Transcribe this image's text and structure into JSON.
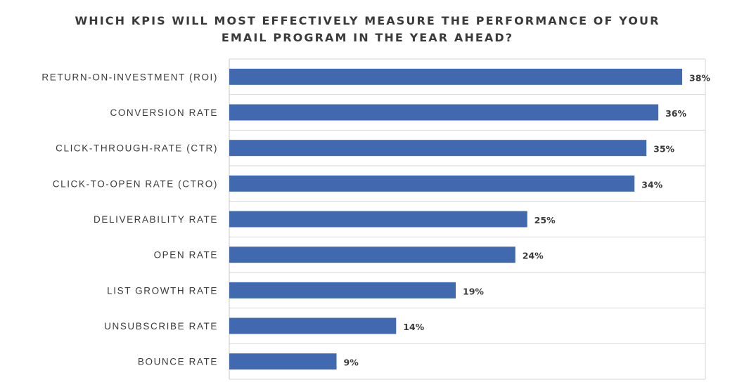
{
  "chart_data": {
    "type": "bar",
    "orientation": "horizontal",
    "title_lines": [
      "WHICH KPIS WILL MOST EFFECTIVELY MEASURE THE PERFORMANCE OF YOUR",
      "EMAIL PROGRAM IN THE YEAR AHEAD?"
    ],
    "categories": [
      "RETURN-ON-INVESTMENT (ROI)",
      "CONVERSION RATE",
      "CLICK-THROUGH-RATE (CTR)",
      "CLICK-TO-OPEN RATE (CTRO)",
      "DELIVERABILITY RATE",
      "OPEN RATE",
      "LIST GROWTH RATE",
      "UNSUBSCRIBE RATE",
      "BOUNCE RATE"
    ],
    "values": [
      38,
      36,
      35,
      34,
      25,
      24,
      19,
      14,
      9
    ],
    "value_labels": [
      "38%",
      "36%",
      "35%",
      "34%",
      "25%",
      "24%",
      "19%",
      "14%",
      "9%"
    ],
    "xlim": [
      0,
      40
    ],
    "bar_color": "#4169b0",
    "gridlines": true
  }
}
